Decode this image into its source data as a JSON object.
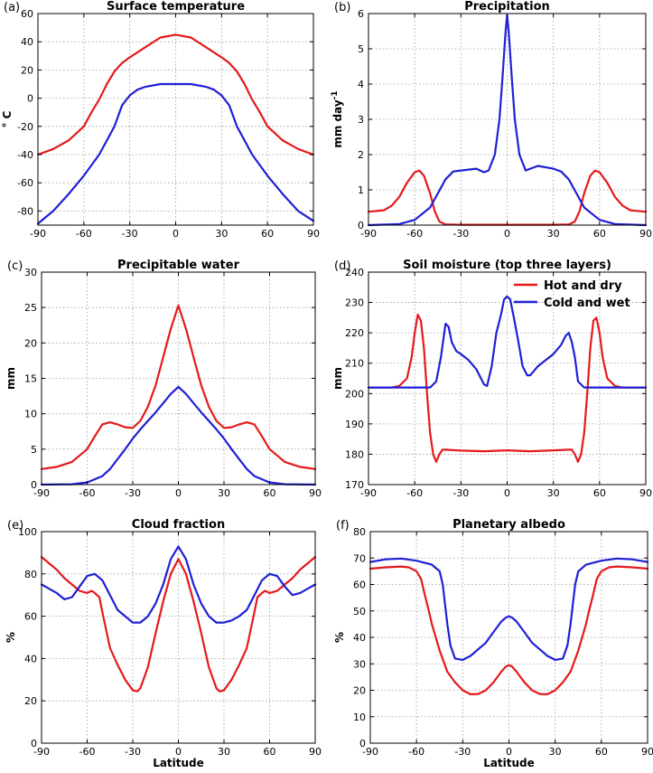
{
  "chart_data": [
    {
      "type": "line",
      "panel_label": "(a)",
      "title": "Surface temperature",
      "xlabel": "",
      "ylabel": "° C",
      "xlim": [
        -90,
        90
      ],
      "ylim": [
        -90,
        60
      ],
      "xticks": [
        -90,
        -60,
        -30,
        0,
        30,
        60,
        90
      ],
      "yticks": [
        -80,
        -60,
        -40,
        -20,
        0,
        20,
        40,
        60
      ],
      "grid": true,
      "series": [
        {
          "color": "#e41a1c",
          "x": [
            -90,
            -80,
            -70,
            -60,
            -55,
            -50,
            -45,
            -40,
            -35,
            -30,
            -20,
            -10,
            0,
            10,
            20,
            30,
            35,
            40,
            45,
            50,
            55,
            60,
            70,
            80,
            90
          ],
          "y": [
            -40,
            -36,
            -30,
            -20,
            -10,
            -1,
            10,
            19,
            25,
            29,
            36,
            43,
            45,
            43,
            36,
            29,
            25,
            19,
            10,
            -1,
            -10,
            -20,
            -30,
            -36,
            -40
          ]
        },
        {
          "color": "#1f1fd6",
          "x": [
            -90,
            -80,
            -70,
            -60,
            -50,
            -45,
            -40,
            -35,
            -30,
            -25,
            -20,
            -10,
            0,
            10,
            20,
            25,
            30,
            35,
            40,
            45,
            50,
            60,
            70,
            80,
            90
          ],
          "y": [
            -89,
            -80,
            -68,
            -55,
            -40,
            -30,
            -20,
            -5,
            2,
            6,
            8,
            10,
            10,
            10,
            8,
            6,
            2,
            -5,
            -20,
            -30,
            -40,
            -55,
            -68,
            -80,
            -87
          ]
        }
      ]
    },
    {
      "type": "line",
      "panel_label": "(b)",
      "title": "Precipitation",
      "xlabel": "",
      "ylabel": "mm day",
      "ylabel_sup": "-1",
      "xlim": [
        -90,
        90
      ],
      "ylim": [
        0,
        6
      ],
      "xticks": [
        -90,
        -60,
        -30,
        0,
        30,
        60,
        90
      ],
      "yticks": [
        0,
        1,
        2,
        3,
        4,
        5,
        6
      ],
      "grid": true,
      "series": [
        {
          "color": "#e41a1c",
          "x": [
            -90,
            -80,
            -75,
            -70,
            -65,
            -60,
            -57,
            -54,
            -50,
            -47,
            -44,
            -40,
            -30,
            0,
            30,
            40,
            44,
            47,
            50,
            54,
            57,
            60,
            65,
            70,
            75,
            80,
            90
          ],
          "y": [
            0.38,
            0.42,
            0.55,
            0.8,
            1.2,
            1.5,
            1.55,
            1.4,
            0.9,
            0.4,
            0.1,
            0.02,
            0.01,
            0.01,
            0.01,
            0.02,
            0.1,
            0.4,
            0.9,
            1.4,
            1.55,
            1.5,
            1.2,
            0.8,
            0.55,
            0.42,
            0.38
          ]
        },
        {
          "color": "#1f1fd6",
          "x": [
            -90,
            -70,
            -60,
            -50,
            -45,
            -40,
            -35,
            -30,
            -20,
            -15,
            -12,
            -8,
            -5,
            -3,
            -1,
            0,
            1,
            3,
            5,
            8,
            12,
            15,
            20,
            30,
            35,
            40,
            45,
            50,
            60,
            70,
            90
          ],
          "y": [
            0,
            0.03,
            0.15,
            0.5,
            0.9,
            1.3,
            1.52,
            1.55,
            1.6,
            1.5,
            1.55,
            2,
            3,
            4.2,
            5.5,
            5.95,
            5.5,
            4.2,
            3,
            2,
            1.55,
            1.6,
            1.68,
            1.6,
            1.52,
            1.3,
            0.9,
            0.5,
            0.15,
            0.03,
            0
          ]
        }
      ]
    },
    {
      "type": "line",
      "panel_label": "(c)",
      "title": "Precipitable water",
      "xlabel": "",
      "ylabel": "mm",
      "xlim": [
        -90,
        90
      ],
      "ylim": [
        0,
        30
      ],
      "xticks": [
        -90,
        -60,
        -30,
        0,
        30,
        60,
        90
      ],
      "yticks": [
        0,
        5,
        10,
        15,
        20,
        25,
        30
      ],
      "grid": true,
      "series": [
        {
          "color": "#e41a1c",
          "x": [
            -90,
            -80,
            -70,
            -60,
            -55,
            -50,
            -45,
            -40,
            -35,
            -30,
            -25,
            -20,
            -15,
            -10,
            -5,
            0,
            5,
            10,
            15,
            20,
            25,
            30,
            35,
            40,
            45,
            50,
            55,
            60,
            70,
            80,
            90
          ],
          "y": [
            2.2,
            2.5,
            3.2,
            5,
            6.8,
            8.5,
            8.8,
            8.5,
            8.1,
            8,
            9,
            11,
            14,
            18,
            22,
            25.3,
            22,
            18,
            14,
            11,
            9,
            8,
            8.1,
            8.5,
            8.8,
            8.5,
            6.8,
            5,
            3.2,
            2.5,
            2.2
          ]
        },
        {
          "color": "#1f1fd6",
          "x": [
            -90,
            -70,
            -60,
            -50,
            -45,
            -40,
            -35,
            -30,
            -25,
            -20,
            -15,
            -10,
            -5,
            0,
            5,
            10,
            15,
            20,
            25,
            30,
            35,
            40,
            45,
            50,
            60,
            70,
            90
          ],
          "y": [
            0,
            0.05,
            0.3,
            1.2,
            2.2,
            3.6,
            5,
            6.5,
            7.8,
            9,
            10.2,
            11.5,
            12.8,
            13.8,
            12.8,
            11.5,
            10.2,
            9,
            7.8,
            6.5,
            5,
            3.6,
            2.2,
            1.2,
            0.3,
            0.05,
            0
          ]
        }
      ]
    },
    {
      "type": "line",
      "panel_label": "(d)",
      "title": "Soil moisture (top three layers)",
      "xlabel": "",
      "ylabel": "mm",
      "xlim": [
        -90,
        90
      ],
      "ylim": [
        170,
        240
      ],
      "xticks": [
        -90,
        -60,
        -30,
        0,
        30,
        60,
        90
      ],
      "yticks": [
        170,
        180,
        190,
        200,
        210,
        220,
        230,
        240
      ],
      "grid": true,
      "legend": {
        "position": "top-right",
        "entries": [
          "Hot and dry",
          "Cold and wet"
        ]
      },
      "series": [
        {
          "name": "Hot and dry",
          "color": "#e41a1c",
          "x": [
            -90,
            -75,
            -70,
            -65,
            -62,
            -60,
            -58,
            -56,
            -54,
            -52,
            -50,
            -48,
            -46,
            -44,
            -42,
            -40,
            -30,
            -15,
            0,
            15,
            30,
            40,
            42,
            44,
            46,
            48,
            50,
            52,
            54,
            56,
            58,
            60,
            62,
            65,
            70,
            75,
            90
          ],
          "y": [
            202,
            202,
            202.5,
            205,
            212,
            220,
            226,
            224,
            215,
            200,
            187,
            180,
            177.5,
            180,
            181.5,
            181.5,
            181.2,
            181,
            181.3,
            181,
            181.3,
            181.5,
            181.5,
            180,
            177.5,
            180,
            187,
            200,
            215,
            224,
            225,
            220,
            212,
            205,
            202.5,
            202,
            202
          ]
        },
        {
          "name": "Cold and wet",
          "color": "#1f1fd6",
          "x": [
            -90,
            -50,
            -46,
            -43,
            -40,
            -38,
            -36,
            -33,
            -30,
            -25,
            -20,
            -15,
            -13,
            -10,
            -7,
            -4,
            -2,
            0,
            2,
            4,
            7,
            10,
            13,
            15,
            20,
            25,
            30,
            35,
            38,
            40,
            42,
            44,
            46,
            50,
            90
          ],
          "y": [
            202,
            202,
            204,
            212,
            223,
            222,
            217,
            214,
            213,
            211,
            208,
            203,
            202.5,
            209,
            220,
            226,
            231,
            232,
            231,
            226,
            218,
            209,
            206,
            206,
            209,
            211,
            213,
            216,
            219,
            220,
            217,
            212,
            204,
            202,
            202
          ]
        }
      ]
    },
    {
      "type": "line",
      "panel_label": "(e)",
      "title": "Cloud fraction",
      "xlabel": "Latitude",
      "ylabel": "%",
      "xlim": [
        -90,
        90
      ],
      "ylim": [
        0,
        100
      ],
      "xticks": [
        -90,
        -60,
        -30,
        0,
        30,
        60,
        90
      ],
      "yticks": [
        0,
        20,
        40,
        60,
        80,
        100
      ],
      "grid": true,
      "series": [
        {
          "color": "#e41a1c",
          "x": [
            -90,
            -85,
            -80,
            -75,
            -70,
            -65,
            -60,
            -57,
            -55,
            -52,
            -50,
            -45,
            -40,
            -35,
            -30,
            -27,
            -25,
            -20,
            -15,
            -10,
            -5,
            0,
            5,
            10,
            15,
            20,
            25,
            27,
            30,
            35,
            40,
            45,
            50,
            52,
            55,
            57,
            60,
            65,
            70,
            75,
            80,
            85,
            90
          ],
          "y": [
            88,
            85,
            82,
            78,
            75,
            72,
            71,
            72,
            71,
            69,
            62,
            45,
            37,
            30,
            25,
            24.5,
            26,
            36,
            52,
            67,
            80,
            87,
            80,
            67,
            52,
            36,
            26,
            24.5,
            25,
            30,
            37,
            45,
            62,
            69,
            71,
            72,
            71,
            72,
            75,
            78,
            82,
            85,
            88
          ]
        },
        {
          "color": "#1f1fd6",
          "x": [
            -90,
            -85,
            -80,
            -75,
            -70,
            -65,
            -60,
            -55,
            -50,
            -45,
            -40,
            -35,
            -30,
            -25,
            -20,
            -15,
            -10,
            -5,
            0,
            5,
            10,
            15,
            20,
            25,
            30,
            35,
            40,
            45,
            50,
            55,
            60,
            65,
            70,
            75,
            80,
            85,
            90
          ],
          "y": [
            75,
            73,
            71,
            68,
            69,
            74,
            79,
            80,
            77,
            70,
            63,
            60,
            57,
            57,
            60,
            66,
            75,
            87,
            93,
            87,
            75,
            66,
            60,
            57,
            57,
            58,
            60,
            63,
            70,
            77,
            80,
            79,
            74,
            70,
            71,
            73,
            75
          ]
        }
      ]
    },
    {
      "type": "line",
      "panel_label": "(f)",
      "title": "Planetary albedo",
      "xlabel": "Latitude",
      "ylabel": "%",
      "xlim": [
        -90,
        90
      ],
      "ylim": [
        0,
        80
      ],
      "xticks": [
        -90,
        -60,
        -30,
        0,
        30,
        60,
        90
      ],
      "yticks": [
        0,
        10,
        20,
        30,
        40,
        50,
        60,
        70,
        80
      ],
      "grid": true,
      "series": [
        {
          "color": "#e41a1c",
          "x": [
            -90,
            -80,
            -70,
            -65,
            -60,
            -57,
            -55,
            -52,
            -50,
            -45,
            -40,
            -35,
            -30,
            -25,
            -20,
            -15,
            -10,
            -5,
            -2,
            0,
            2,
            5,
            10,
            15,
            20,
            25,
            30,
            35,
            40,
            45,
            50,
            52,
            55,
            57,
            60,
            65,
            70,
            80,
            90
          ],
          "y": [
            66,
            66.5,
            66.8,
            66.5,
            65,
            62,
            57,
            50,
            45,
            35,
            27,
            23,
            20,
            18.5,
            18.6,
            20,
            23,
            27,
            29,
            29.5,
            29,
            27,
            23,
            20,
            18.6,
            18.5,
            20,
            23,
            27,
            35,
            45,
            50,
            57,
            62,
            65,
            66.5,
            66.8,
            66.5,
            66
          ]
        },
        {
          "color": "#1f1fd6",
          "x": [
            -90,
            -80,
            -70,
            -60,
            -50,
            -45,
            -43,
            -40,
            -38,
            -35,
            -30,
            -25,
            -20,
            -15,
            -10,
            -5,
            -2,
            0,
            2,
            5,
            10,
            15,
            20,
            25,
            30,
            35,
            38,
            40,
            43,
            45,
            50,
            60,
            70,
            80,
            90
          ],
          "y": [
            68.5,
            69.5,
            69.8,
            69,
            67.5,
            65,
            60,
            45,
            37,
            32,
            31.5,
            33,
            35.5,
            38,
            42,
            46,
            47.5,
            48,
            47.5,
            46,
            42,
            38,
            35.5,
            33,
            31.5,
            32,
            37,
            45,
            60,
            65,
            67.5,
            69,
            69.8,
            69.5,
            68.5
          ]
        }
      ]
    }
  ]
}
